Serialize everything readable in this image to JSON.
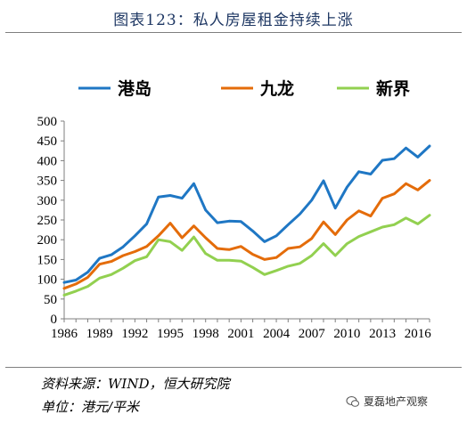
{
  "header": {
    "title": "图表123：私人房屋租金持续上涨"
  },
  "footer": {
    "source": "资料来源：WIND，恒大研究院",
    "unit": "单位：港元/平米",
    "watermark": "夏磊地产观察",
    "watermark_icon": "wechat-icon"
  },
  "chart_data": {
    "type": "line",
    "title": "",
    "xlabel": "",
    "ylabel": "",
    "x": [
      1986,
      1987,
      1988,
      1989,
      1990,
      1991,
      1992,
      1993,
      1994,
      1995,
      1996,
      1997,
      1998,
      1999,
      2000,
      2001,
      2002,
      2003,
      2004,
      2005,
      2006,
      2007,
      2008,
      2009,
      2010,
      2011,
      2012,
      2013,
      2014,
      2015,
      2016,
      2017
    ],
    "xticks": [
      1986,
      1989,
      1992,
      1995,
      1998,
      2001,
      2004,
      2007,
      2010,
      2013,
      2016
    ],
    "ylim": [
      0,
      500
    ],
    "yticks": [
      0,
      50,
      100,
      150,
      200,
      250,
      300,
      350,
      400,
      450,
      500
    ],
    "grid": false,
    "legend_position": "top",
    "series": [
      {
        "name": "港岛",
        "color": "#1f77c4",
        "values": [
          92,
          98,
          118,
          153,
          162,
          182,
          210,
          240,
          308,
          312,
          305,
          342,
          275,
          243,
          247,
          246,
          222,
          195,
          210,
          238,
          265,
          300,
          349,
          280,
          333,
          372,
          366,
          401,
          405,
          432,
          409,
          437
        ]
      },
      {
        "name": "九龙",
        "color": "#e46c0a",
        "values": [
          77,
          88,
          105,
          138,
          145,
          160,
          170,
          183,
          210,
          242,
          205,
          235,
          205,
          178,
          175,
          183,
          163,
          150,
          155,
          178,
          182,
          203,
          245,
          213,
          250,
          273,
          260,
          305,
          316,
          342,
          326,
          350
        ]
      },
      {
        "name": "新界",
        "color": "#92d050",
        "values": [
          60,
          70,
          82,
          103,
          112,
          128,
          147,
          157,
          200,
          195,
          173,
          207,
          165,
          148,
          148,
          146,
          130,
          112,
          122,
          133,
          140,
          160,
          190,
          160,
          190,
          208,
          220,
          232,
          238,
          255,
          240,
          262
        ]
      }
    ]
  }
}
